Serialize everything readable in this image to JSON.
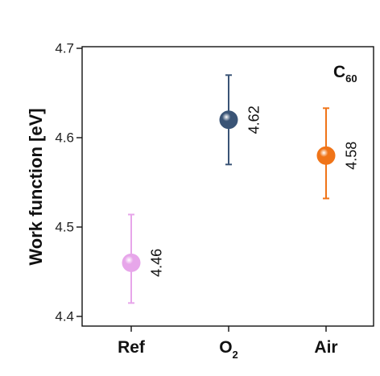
{
  "chart_data": {
    "type": "scatter",
    "categories": [
      "Ref",
      "O",
      "Air"
    ],
    "category_subscripts": [
      "",
      "2",
      ""
    ],
    "values": [
      4.46,
      4.62,
      4.58
    ],
    "error_low": [
      4.415,
      4.57,
      4.532
    ],
    "error_high": [
      4.514,
      4.67,
      4.633
    ],
    "data_labels": [
      "4.46",
      "4.62",
      "4.58"
    ],
    "colors": [
      "#e7a6ea",
      "#3a5476",
      "#f07418"
    ],
    "ylabel": "Work function [eV]",
    "ylim": [
      4.4,
      4.7
    ],
    "yticks": [
      "4.4",
      "4.5",
      "4.6",
      "4.7"
    ],
    "annotation": {
      "main": "C",
      "sub": "60"
    },
    "grid": false
  }
}
